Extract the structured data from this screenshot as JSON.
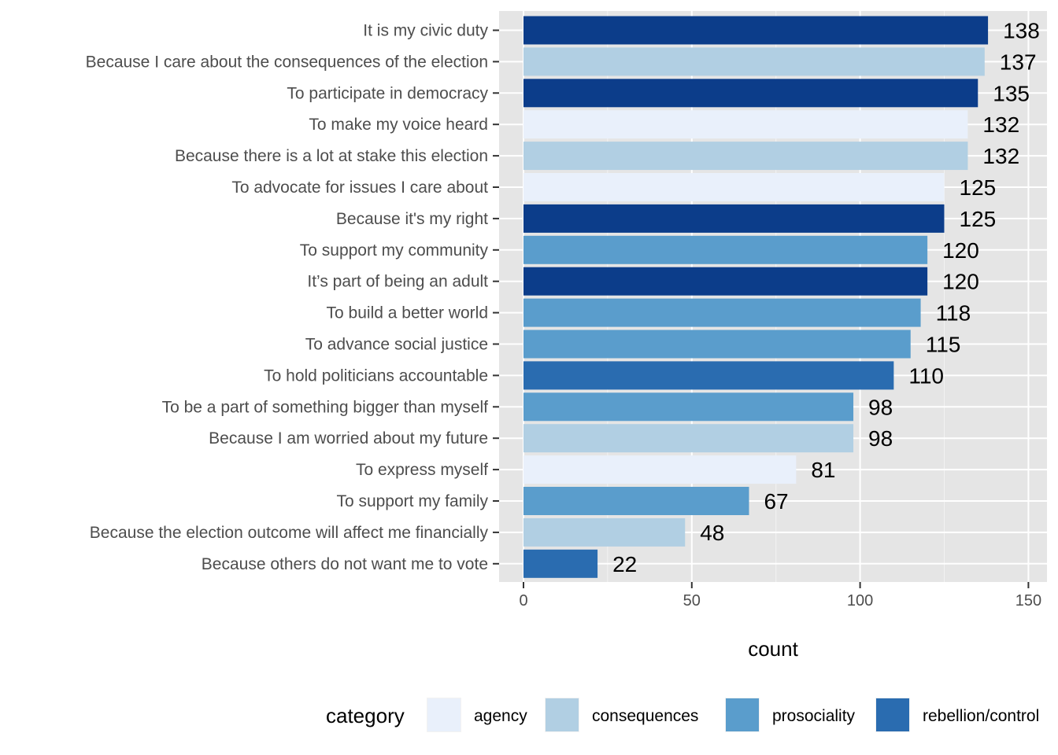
{
  "chart_data": {
    "type": "bar",
    "orientation": "horizontal",
    "xlabel": "count",
    "ylabel": "",
    "xlim": [
      0,
      152
    ],
    "x_ticks": [
      0,
      50,
      100,
      150
    ],
    "grid": true,
    "legend": {
      "title": "category",
      "position": "bottom",
      "entries": [
        {
          "name": "agency",
          "color": "#E9F0FB"
        },
        {
          "name": "consequences",
          "color": "#B1CFE3"
        },
        {
          "name": "prosociality",
          "color": "#5A9DCC"
        },
        {
          "name": "rebellion/control",
          "color": "#2A6CB0"
        }
      ]
    },
    "bars": [
      {
        "label": "It is my civic duty",
        "value": 138,
        "color": "#0C3D8A"
      },
      {
        "label": "Because I care about the consequences of the election",
        "value": 137,
        "color": "#B1CFE3"
      },
      {
        "label": "To participate in democracy",
        "value": 135,
        "color": "#0C3D8A"
      },
      {
        "label": "To make my voice heard",
        "value": 132,
        "color": "#E9F0FB"
      },
      {
        "label": "Because there is a lot at stake this election",
        "value": 132,
        "color": "#B1CFE3"
      },
      {
        "label": "To advocate for issues I care about",
        "value": 125,
        "color": "#E9F0FB"
      },
      {
        "label": "Because it's my right",
        "value": 125,
        "color": "#0C3D8A"
      },
      {
        "label": "To support my community",
        "value": 120,
        "color": "#5A9DCC"
      },
      {
        "label": "It’s part of being an adult",
        "value": 120,
        "color": "#0C3D8A"
      },
      {
        "label": "To build a better world",
        "value": 118,
        "color": "#5A9DCC"
      },
      {
        "label": "To advance social justice",
        "value": 115,
        "color": "#5A9DCC"
      },
      {
        "label": "To hold politicians accountable",
        "value": 110,
        "color": "#2A6CB0"
      },
      {
        "label": "To be a part of something bigger than myself",
        "value": 98,
        "color": "#5A9DCC"
      },
      {
        "label": "Because I am worried about my future",
        "value": 98,
        "color": "#B1CFE3"
      },
      {
        "label": "To express myself",
        "value": 81,
        "color": "#E9F0FB"
      },
      {
        "label": "To support my family",
        "value": 67,
        "color": "#5A9DCC"
      },
      {
        "label": "Because the election outcome will affect me financially",
        "value": 48,
        "color": "#B1CFE3"
      },
      {
        "label": "Because others do not want me to vote",
        "value": 22,
        "color": "#2A6CB0"
      }
    ]
  }
}
